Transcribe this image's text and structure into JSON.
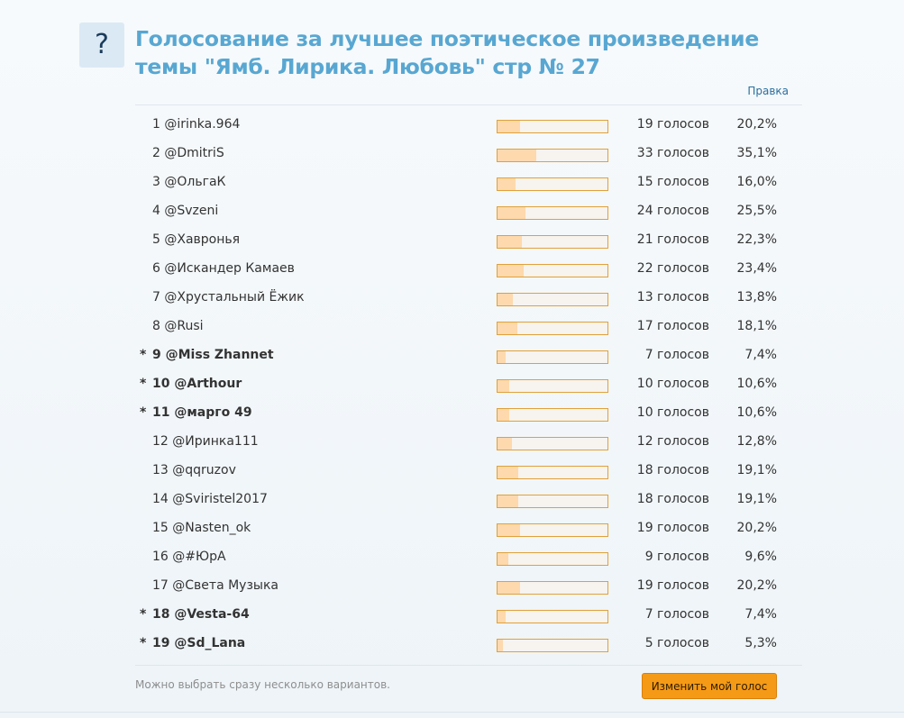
{
  "poll": {
    "icon": "question-icon",
    "icon_glyph": "?",
    "title": "Голосование за лучшее поэтическое произведение темы \"Ямб. Лирика. Любовь\" стр № 27",
    "edit_link": "Правка",
    "hint": "Можно выбрать сразу несколько вариантов.",
    "submit_label": "Изменить мой голос",
    "accent_color": "#f59a16",
    "bar_fill_color": "#fdd9ad"
  },
  "options": [
    {
      "num": "1",
      "name": "@irinka.964",
      "votes": "19 голосов",
      "percent": "20,2%",
      "share": 20.2,
      "marked": false
    },
    {
      "num": "2",
      "name": "@DmitriS",
      "votes": "33 голосов",
      "percent": "35,1%",
      "share": 35.1,
      "marked": false
    },
    {
      "num": "3",
      "name": "@ОльгаК",
      "votes": "15 голосов",
      "percent": "16,0%",
      "share": 16.0,
      "marked": false
    },
    {
      "num": "4",
      "name": "@Svzeni",
      "votes": "24 голосов",
      "percent": "25,5%",
      "share": 25.5,
      "marked": false
    },
    {
      "num": "5",
      "name": "@Хавронья",
      "votes": "21 голосов",
      "percent": "22,3%",
      "share": 22.3,
      "marked": false
    },
    {
      "num": "6",
      "name": "@Искандер Камаев",
      "votes": "22 голосов",
      "percent": "23,4%",
      "share": 23.4,
      "marked": false
    },
    {
      "num": "7",
      "name": "@Хрустальный Ёжик",
      "votes": "13 голосов",
      "percent": "13,8%",
      "share": 13.8,
      "marked": false
    },
    {
      "num": "8",
      "name": "@Rusi",
      "votes": "17 голосов",
      "percent": "18,1%",
      "share": 18.1,
      "marked": false
    },
    {
      "num": "9",
      "name": "@Miss Zhannet",
      "votes": "7 голосов",
      "percent": "7,4%",
      "share": 7.4,
      "marked": true
    },
    {
      "num": "10",
      "name": "@Arthour",
      "votes": "10 голосов",
      "percent": "10,6%",
      "share": 10.6,
      "marked": true
    },
    {
      "num": "11",
      "name": "@марго 49",
      "votes": "10 голосов",
      "percent": "10,6%",
      "share": 10.6,
      "marked": true
    },
    {
      "num": "12",
      "name": "@Иринка111",
      "votes": "12 голосов",
      "percent": "12,8%",
      "share": 12.8,
      "marked": false
    },
    {
      "num": "13",
      "name": "@qqruzov",
      "votes": "18 голосов",
      "percent": "19,1%",
      "share": 19.1,
      "marked": false
    },
    {
      "num": "14",
      "name": "@Sviristel2017",
      "votes": "18 голосов",
      "percent": "19,1%",
      "share": 19.1,
      "marked": false
    },
    {
      "num": "15",
      "name": "@Nasten_ok",
      "votes": "19 голосов",
      "percent": "20,2%",
      "share": 20.2,
      "marked": false
    },
    {
      "num": "16",
      "name": "@#ЮрА",
      "votes": "9 голосов",
      "percent": "9,6%",
      "share": 9.6,
      "marked": false
    },
    {
      "num": "17",
      "name": "@Света Музыка",
      "votes": "19 голосов",
      "percent": "20,2%",
      "share": 20.2,
      "marked": false
    },
    {
      "num": "18",
      "name": "@Vesta-64",
      "votes": "7 голосов",
      "percent": "7,4%",
      "share": 7.4,
      "marked": true
    },
    {
      "num": "19",
      "name": "@Sd_Lana",
      "votes": "5 голосов",
      "percent": "5,3%",
      "share": 5.3,
      "marked": true
    }
  ]
}
